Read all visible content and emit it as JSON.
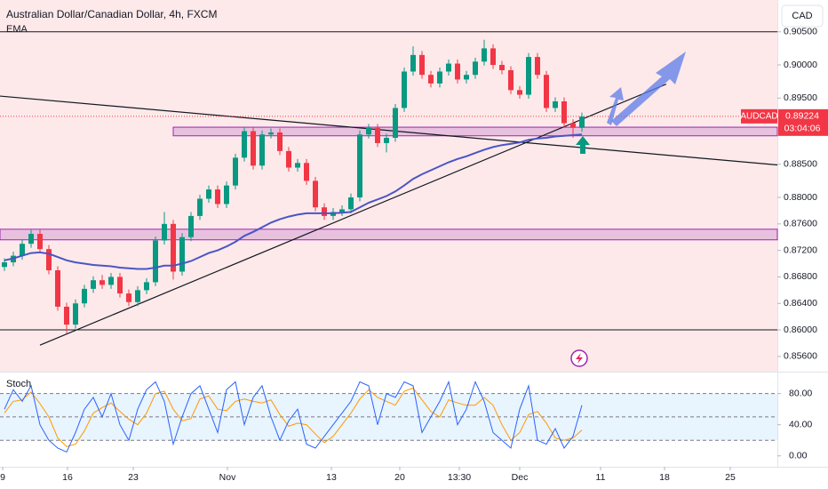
{
  "chart_data": {
    "type": "candlestick",
    "title": "Australian Dollar/Canadian Dollar, 4h, FXCM",
    "currency": "CAD",
    "open": [
      0.8695,
      0.8702,
      0.8712,
      0.873,
      0.8745,
      0.8722,
      0.869,
      0.8635,
      0.8608,
      0.864,
      0.8662,
      0.8675,
      0.8668,
      0.868,
      0.8655,
      0.8642,
      0.866,
      0.8672,
      0.8735,
      0.876,
      0.8688,
      0.874,
      0.8772,
      0.8798,
      0.8812,
      0.879,
      0.8818,
      0.886,
      0.89,
      0.8848,
      0.8895,
      0.8898,
      0.887,
      0.8845,
      0.8852,
      0.8825,
      0.8785,
      0.8772,
      0.8778,
      0.8782,
      0.88,
      0.8895,
      0.8905,
      0.8882,
      0.889,
      0.8935,
      0.899,
      0.9015,
      0.8985,
      0.8972,
      0.899,
      0.9002,
      0.8978,
      0.8985,
      0.9005,
      0.9025,
      0.9,
      0.8992,
      0.8962,
      0.8955,
      0.9012,
      0.8985,
      0.8935,
      0.8945,
      0.8912,
      0.8905
    ],
    "high": [
      0.8708,
      0.8718,
      0.8736,
      0.8751,
      0.8751,
      0.8728,
      0.8696,
      0.8641,
      0.8646,
      0.8668,
      0.8681,
      0.8683,
      0.8686,
      0.8686,
      0.8661,
      0.8666,
      0.8678,
      0.8741,
      0.8778,
      0.8766,
      0.8746,
      0.8778,
      0.8804,
      0.8818,
      0.8818,
      0.8824,
      0.8866,
      0.8906,
      0.8906,
      0.8901,
      0.8904,
      0.8904,
      0.8876,
      0.8858,
      0.8858,
      0.8831,
      0.8791,
      0.8784,
      0.8788,
      0.8806,
      0.8901,
      0.8911,
      0.8911,
      0.8896,
      0.8941,
      0.8996,
      0.9028,
      0.9021,
      0.8991,
      0.8996,
      0.9008,
      0.9008,
      0.8991,
      0.9011,
      0.9038,
      0.9031,
      0.9006,
      0.8998,
      0.8968,
      0.9018,
      0.9018,
      0.8991,
      0.8951,
      0.8951,
      0.8918,
      0.8928
    ],
    "low": [
      0.8689,
      0.8696,
      0.8706,
      0.8724,
      0.8716,
      0.8684,
      0.8629,
      0.8595,
      0.8602,
      0.8634,
      0.8656,
      0.8662,
      0.8662,
      0.8649,
      0.8636,
      0.8636,
      0.8654,
      0.8666,
      0.8729,
      0.8676,
      0.8682,
      0.8734,
      0.8766,
      0.8792,
      0.8784,
      0.8784,
      0.8812,
      0.8854,
      0.8842,
      0.8842,
      0.8889,
      0.8864,
      0.8839,
      0.8839,
      0.8819,
      0.8779,
      0.8766,
      0.8766,
      0.8772,
      0.8776,
      0.8794,
      0.8889,
      0.8876,
      0.8868,
      0.8884,
      0.8929,
      0.8984,
      0.8979,
      0.8966,
      0.8966,
      0.8984,
      0.8972,
      0.8972,
      0.8979,
      0.8999,
      0.8994,
      0.8986,
      0.8956,
      0.8949,
      0.8949,
      0.8979,
      0.8929,
      0.8929,
      0.8906,
      0.889,
      0.8899
    ],
    "close": [
      0.8702,
      0.8712,
      0.873,
      0.8745,
      0.8722,
      0.869,
      0.8635,
      0.8608,
      0.864,
      0.8662,
      0.8675,
      0.8668,
      0.868,
      0.8655,
      0.8642,
      0.866,
      0.8672,
      0.8735,
      0.876,
      0.8688,
      0.874,
      0.8772,
      0.8798,
      0.8812,
      0.879,
      0.8818,
      0.886,
      0.89,
      0.8848,
      0.8895,
      0.8898,
      0.887,
      0.8845,
      0.8852,
      0.8825,
      0.8785,
      0.8772,
      0.8778,
      0.8782,
      0.88,
      0.8895,
      0.8905,
      0.8882,
      0.889,
      0.8935,
      0.899,
      0.9015,
      0.8985,
      0.8972,
      0.899,
      0.9002,
      0.8978,
      0.8985,
      0.9005,
      0.9025,
      0.9,
      0.8992,
      0.8962,
      0.8955,
      0.9012,
      0.8985,
      0.8935,
      0.8945,
      0.8912,
      0.8905,
      0.8922
    ],
    "up_color": "#089981",
    "down_color": "#f23645",
    "ylim": [
      0.8537,
      0.9098
    ],
    "yticks": [
      {
        "value": 0.905,
        "label": "0.90500"
      },
      {
        "value": 0.9,
        "label": "0.90000"
      },
      {
        "value": 0.895,
        "label": "0.89500"
      },
      {
        "value": 0.885,
        "label": "0.88500"
      },
      {
        "value": 0.88,
        "label": "0.88000"
      },
      {
        "value": 0.876,
        "label": "0.87600"
      },
      {
        "value": 0.872,
        "label": "0.87200"
      },
      {
        "value": 0.868,
        "label": "0.86800"
      },
      {
        "value": 0.864,
        "label": "0.86400"
      },
      {
        "value": 0.86,
        "label": "0.86000"
      },
      {
        "value": 0.856,
        "label": "0.85600"
      }
    ],
    "xlim": [
      -0.5,
      87
    ],
    "xticks": [
      {
        "value": -0.2,
        "label": "9"
      },
      {
        "value": 7.1,
        "label": "16"
      },
      {
        "value": 14.5,
        "label": "23"
      },
      {
        "value": 25.1,
        "label": "Nov"
      },
      {
        "value": 36.8,
        "label": "13"
      },
      {
        "value": 44.5,
        "label": "20"
      },
      {
        "value": 51.2,
        "label": "13:30"
      },
      {
        "value": 58,
        "label": "Dec"
      },
      {
        "value": 67.1,
        "label": "11"
      },
      {
        "value": 74.3,
        "label": "18"
      },
      {
        "value": 81.7,
        "label": "25"
      }
    ],
    "ema": {
      "name": "EMA",
      "color": "#4a55c4",
      "values": [
        0.8705,
        0.8708,
        0.8712,
        0.8716,
        0.8717,
        0.8715,
        0.871,
        0.8705,
        0.8702,
        0.87,
        0.8698,
        0.8697,
        0.8696,
        0.8694,
        0.8693,
        0.8692,
        0.8692,
        0.8694,
        0.8697,
        0.8697,
        0.87,
        0.8704,
        0.871,
        0.8716,
        0.872,
        0.8726,
        0.8733,
        0.8742,
        0.8748,
        0.8755,
        0.8762,
        0.8767,
        0.8771,
        0.8774,
        0.8776,
        0.8776,
        0.8776,
        0.8776,
        0.8777,
        0.8778,
        0.8785,
        0.8792,
        0.8797,
        0.8802,
        0.8809,
        0.8818,
        0.8828,
        0.8835,
        0.8841,
        0.8847,
        0.8853,
        0.8858,
        0.8862,
        0.8867,
        0.8872,
        0.8876,
        0.8879,
        0.8881,
        0.8883,
        0.8887,
        0.8889,
        0.889,
        0.8892,
        0.8893,
        0.8894,
        0.8895
      ]
    },
    "hlines": [
      0.905,
      0.86
    ],
    "trendlines": [
      {
        "x": [
          -0.5,
          87
        ],
        "y": [
          0.8953,
          0.8849
        ]
      },
      {
        "x": [
          4,
          74.5
        ],
        "y": [
          0.8577,
          0.8971
        ]
      }
    ],
    "zones": [
      {
        "x": [
          19,
          87
        ],
        "y": [
          0.8893,
          0.8906
        ]
      },
      {
        "x": [
          -0.5,
          87
        ],
        "y": [
          0.8736,
          0.8752
        ]
      }
    ],
    "last": {
      "symbol": "AUDCAD",
      "price": 0.89224,
      "countdown": "03:04:06"
    },
    "stoch": {
      "name": "Stoch",
      "k": {
        "color": "#2962ff",
        "values": [
          60,
          85,
          70,
          90,
          40,
          20,
          10,
          5,
          30,
          60,
          75,
          50,
          80,
          40,
          20,
          60,
          85,
          95,
          70,
          15,
          50,
          80,
          90,
          60,
          30,
          85,
          95,
          40,
          75,
          90,
          50,
          20,
          45,
          60,
          15,
          10,
          25,
          40,
          55,
          70,
          95,
          90,
          40,
          80,
          75,
          95,
          90,
          30,
          50,
          70,
          95,
          40,
          60,
          95,
          70,
          30,
          20,
          10,
          60,
          90,
          20,
          15,
          35,
          10,
          25,
          65
        ]
      },
      "d": {
        "color": "#ff9800",
        "values": [
          55,
          70,
          72,
          82,
          67,
          50,
          23,
          12,
          15,
          32,
          55,
          62,
          68,
          57,
          47,
          40,
          55,
          80,
          83,
          60,
          45,
          48,
          73,
          77,
          60,
          58,
          70,
          73,
          70,
          68,
          72,
          53,
          38,
          42,
          40,
          28,
          17,
          25,
          40,
          55,
          73,
          85,
          75,
          70,
          65,
          83,
          87,
          72,
          57,
          50,
          72,
          68,
          65,
          65,
          75,
          65,
          40,
          20,
          30,
          53,
          57,
          42,
          23,
          20,
          23,
          33
        ]
      },
      "ylim": [
        -14,
        107
      ],
      "yticks": [
        {
          "value": 80,
          "label": "80.00"
        },
        {
          "value": 40,
          "label": "40.00"
        },
        {
          "value": 0,
          "label": "0.00"
        }
      ],
      "levels": [
        80,
        50,
        20
      ]
    }
  }
}
